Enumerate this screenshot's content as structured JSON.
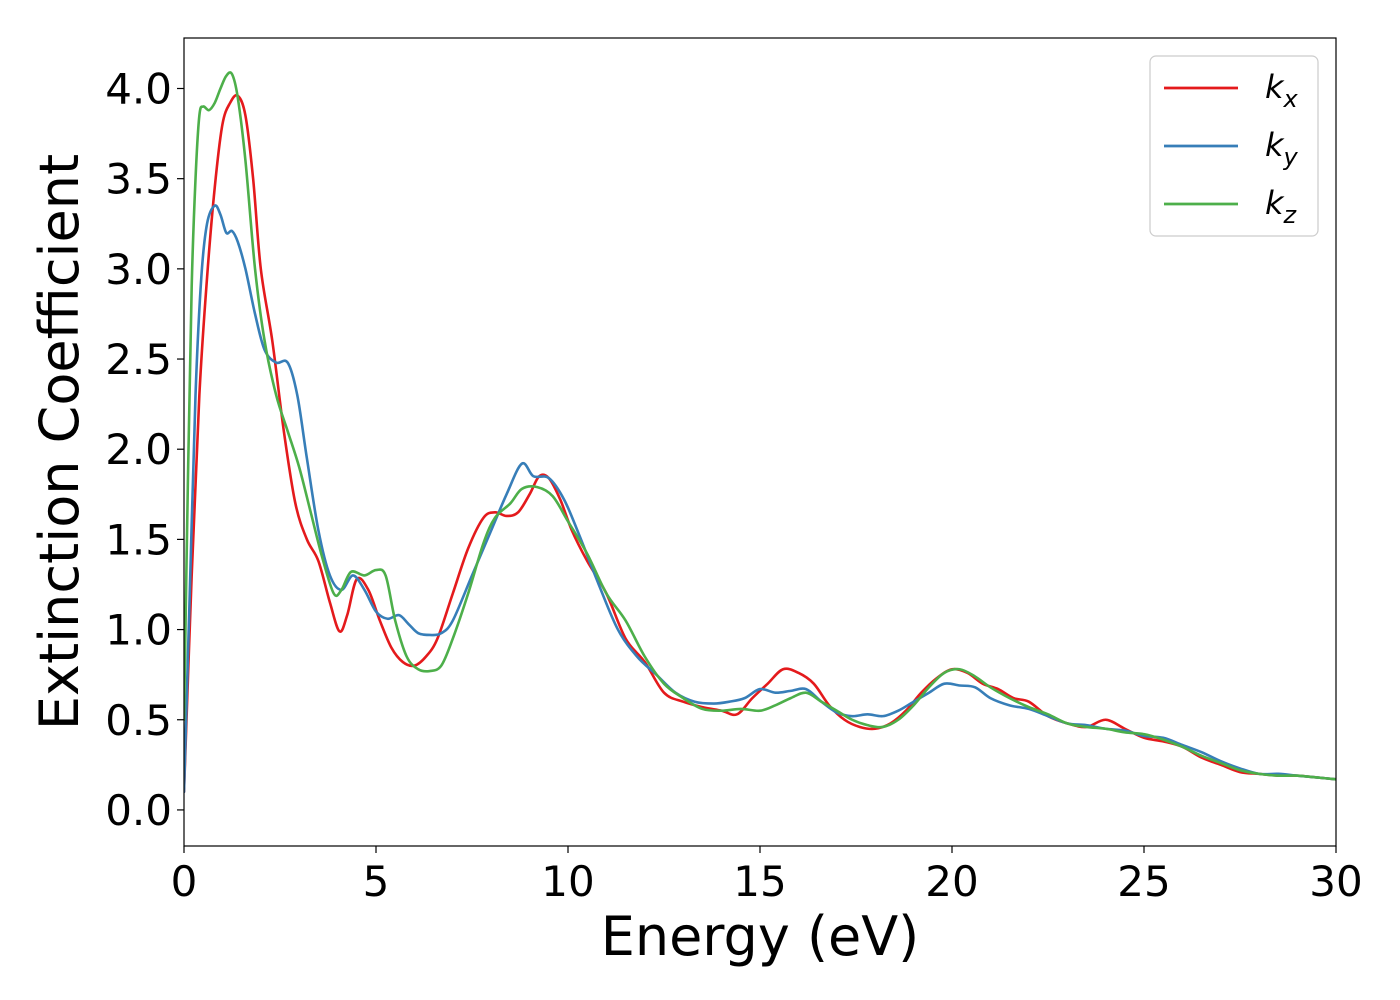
{
  "chart_data": {
    "type": "line",
    "title": "",
    "xlabel": "Energy (eV)",
    "ylabel": "Extinction Coefficient",
    "xlim": [
      0,
      30
    ],
    "ylim": [
      -0.2,
      4.28
    ],
    "xticks": [
      0,
      5,
      10,
      15,
      20,
      25,
      30
    ],
    "xtick_labels": [
      "0",
      "5",
      "10",
      "15",
      "20",
      "25",
      "30"
    ],
    "yticks": [
      0.0,
      0.5,
      1.0,
      1.5,
      2.0,
      2.5,
      3.0,
      3.5,
      4.0
    ],
    "ytick_labels": [
      "0.0",
      "0.5",
      "1.0",
      "1.5",
      "2.0",
      "2.5",
      "3.0",
      "3.5",
      "4.0"
    ],
    "grid": false,
    "legend_position": "top-right",
    "series": [
      {
        "name": "k",
        "name_sub": "x",
        "color": "#e41a1c",
        "x": [
          0,
          0.2,
          0.4,
          0.6,
          0.8,
          1.0,
          1.2,
          1.4,
          1.6,
          1.8,
          2.0,
          2.3,
          2.6,
          2.9,
          3.2,
          3.5,
          3.8,
          4.05,
          4.25,
          4.5,
          4.8,
          5.1,
          5.4,
          5.7,
          6.0,
          6.3,
          6.6,
          7.0,
          7.4,
          7.8,
          8.1,
          8.4,
          8.7,
          9.0,
          9.25,
          9.5,
          9.8,
          10.1,
          10.5,
          11.0,
          11.5,
          12.0,
          12.5,
          13.0,
          13.5,
          14.0,
          14.4,
          14.8,
          15.2,
          15.6,
          16.0,
          16.4,
          16.8,
          17.2,
          17.6,
          18.0,
          18.4,
          18.8,
          19.2,
          19.6,
          20.0,
          20.4,
          20.8,
          21.2,
          21.6,
          22.0,
          22.5,
          23.0,
          23.5,
          24.0,
          24.5,
          25.0,
          25.5,
          26.0,
          26.5,
          27.0,
          27.5,
          28.0,
          28.5,
          29.0,
          29.5,
          30.0
        ],
        "y": [
          0.1,
          1.3,
          2.3,
          2.95,
          3.45,
          3.8,
          3.92,
          3.96,
          3.85,
          3.5,
          3.0,
          2.6,
          2.1,
          1.7,
          1.5,
          1.38,
          1.15,
          0.99,
          1.08,
          1.28,
          1.22,
          1.05,
          0.9,
          0.82,
          0.8,
          0.85,
          0.95,
          1.2,
          1.45,
          1.62,
          1.65,
          1.63,
          1.65,
          1.75,
          1.85,
          1.84,
          1.72,
          1.55,
          1.38,
          1.2,
          0.95,
          0.82,
          0.65,
          0.6,
          0.57,
          0.55,
          0.53,
          0.62,
          0.7,
          0.78,
          0.76,
          0.7,
          0.58,
          0.5,
          0.46,
          0.45,
          0.48,
          0.55,
          0.65,
          0.73,
          0.78,
          0.76,
          0.7,
          0.67,
          0.62,
          0.6,
          0.52,
          0.48,
          0.46,
          0.5,
          0.45,
          0.4,
          0.38,
          0.35,
          0.29,
          0.25,
          0.21,
          0.2,
          0.19,
          0.19,
          0.18,
          0.17
        ]
      },
      {
        "name": "k",
        "name_sub": "y",
        "color": "#377eb8",
        "x": [
          0,
          0.15,
          0.3,
          0.45,
          0.6,
          0.8,
          0.95,
          1.1,
          1.25,
          1.4,
          1.6,
          1.85,
          2.1,
          2.4,
          2.7,
          2.95,
          3.2,
          3.5,
          3.8,
          4.1,
          4.4,
          4.7,
          5.0,
          5.3,
          5.6,
          5.85,
          6.1,
          6.4,
          6.7,
          7.0,
          7.5,
          8.0,
          8.4,
          8.8,
          9.1,
          9.5,
          9.9,
          10.3,
          10.8,
          11.3,
          11.8,
          12.3,
          12.8,
          13.3,
          13.8,
          14.2,
          14.6,
          15.0,
          15.4,
          15.8,
          16.2,
          16.6,
          17.0,
          17.4,
          17.8,
          18.2,
          18.6,
          19.0,
          19.4,
          19.8,
          20.2,
          20.6,
          21.0,
          21.5,
          22.0,
          22.5,
          23.0,
          23.5,
          24.0,
          24.5,
          25.0,
          25.5,
          26.0,
          26.5,
          27.0,
          27.5,
          28.0,
          28.5,
          29.0,
          29.5,
          30.0
        ],
        "y": [
          0.1,
          1.2,
          2.3,
          2.95,
          3.25,
          3.35,
          3.3,
          3.2,
          3.21,
          3.15,
          3.0,
          2.75,
          2.55,
          2.48,
          2.48,
          2.3,
          1.95,
          1.55,
          1.3,
          1.22,
          1.3,
          1.22,
          1.1,
          1.06,
          1.08,
          1.03,
          0.98,
          0.97,
          0.98,
          1.05,
          1.3,
          1.55,
          1.75,
          1.92,
          1.85,
          1.84,
          1.72,
          1.52,
          1.25,
          1.0,
          0.85,
          0.75,
          0.65,
          0.6,
          0.59,
          0.6,
          0.62,
          0.67,
          0.65,
          0.66,
          0.67,
          0.6,
          0.54,
          0.52,
          0.53,
          0.52,
          0.55,
          0.6,
          0.65,
          0.7,
          0.69,
          0.68,
          0.62,
          0.58,
          0.56,
          0.52,
          0.48,
          0.47,
          0.45,
          0.44,
          0.41,
          0.4,
          0.36,
          0.32,
          0.27,
          0.23,
          0.2,
          0.2,
          0.19,
          0.18,
          0.17
        ]
      },
      {
        "name": "k",
        "name_sub": "z",
        "color": "#4daf4a",
        "x": [
          0,
          0.1,
          0.2,
          0.3,
          0.4,
          0.5,
          0.65,
          0.8,
          0.95,
          1.1,
          1.25,
          1.4,
          1.6,
          1.85,
          2.1,
          2.4,
          2.7,
          3.0,
          3.3,
          3.6,
          3.9,
          4.1,
          4.35,
          4.7,
          5.0,
          5.25,
          5.5,
          5.8,
          6.1,
          6.4,
          6.7,
          7.0,
          7.4,
          7.8,
          8.1,
          8.5,
          8.8,
          9.2,
          9.6,
          10.0,
          10.5,
          11.0,
          11.5,
          12.0,
          12.5,
          13.0,
          13.5,
          14.0,
          14.5,
          15.0,
          15.4,
          15.8,
          16.2,
          16.6,
          17.0,
          17.4,
          17.8,
          18.2,
          18.6,
          19.0,
          19.4,
          19.8,
          20.2,
          20.6,
          21.0,
          21.5,
          22.0,
          22.5,
          23.0,
          23.5,
          24.0,
          24.5,
          25.0,
          25.5,
          26.0,
          26.5,
          27.0,
          27.5,
          28.0,
          28.5,
          29.0,
          29.5,
          30.0
        ],
        "y": [
          0.5,
          1.8,
          2.9,
          3.5,
          3.85,
          3.9,
          3.88,
          3.92,
          4.0,
          4.07,
          4.08,
          3.95,
          3.6,
          3.0,
          2.6,
          2.3,
          2.1,
          1.9,
          1.65,
          1.4,
          1.2,
          1.22,
          1.32,
          1.3,
          1.33,
          1.3,
          1.05,
          0.85,
          0.78,
          0.77,
          0.8,
          0.95,
          1.2,
          1.48,
          1.62,
          1.7,
          1.78,
          1.79,
          1.74,
          1.6,
          1.42,
          1.2,
          1.05,
          0.85,
          0.7,
          0.62,
          0.56,
          0.55,
          0.56,
          0.55,
          0.58,
          0.62,
          0.65,
          0.6,
          0.55,
          0.5,
          0.47,
          0.46,
          0.5,
          0.58,
          0.68,
          0.76,
          0.78,
          0.74,
          0.68,
          0.62,
          0.57,
          0.53,
          0.48,
          0.46,
          0.45,
          0.43,
          0.42,
          0.39,
          0.35,
          0.3,
          0.26,
          0.22,
          0.2,
          0.19,
          0.19,
          0.18,
          0.17
        ]
      }
    ]
  }
}
